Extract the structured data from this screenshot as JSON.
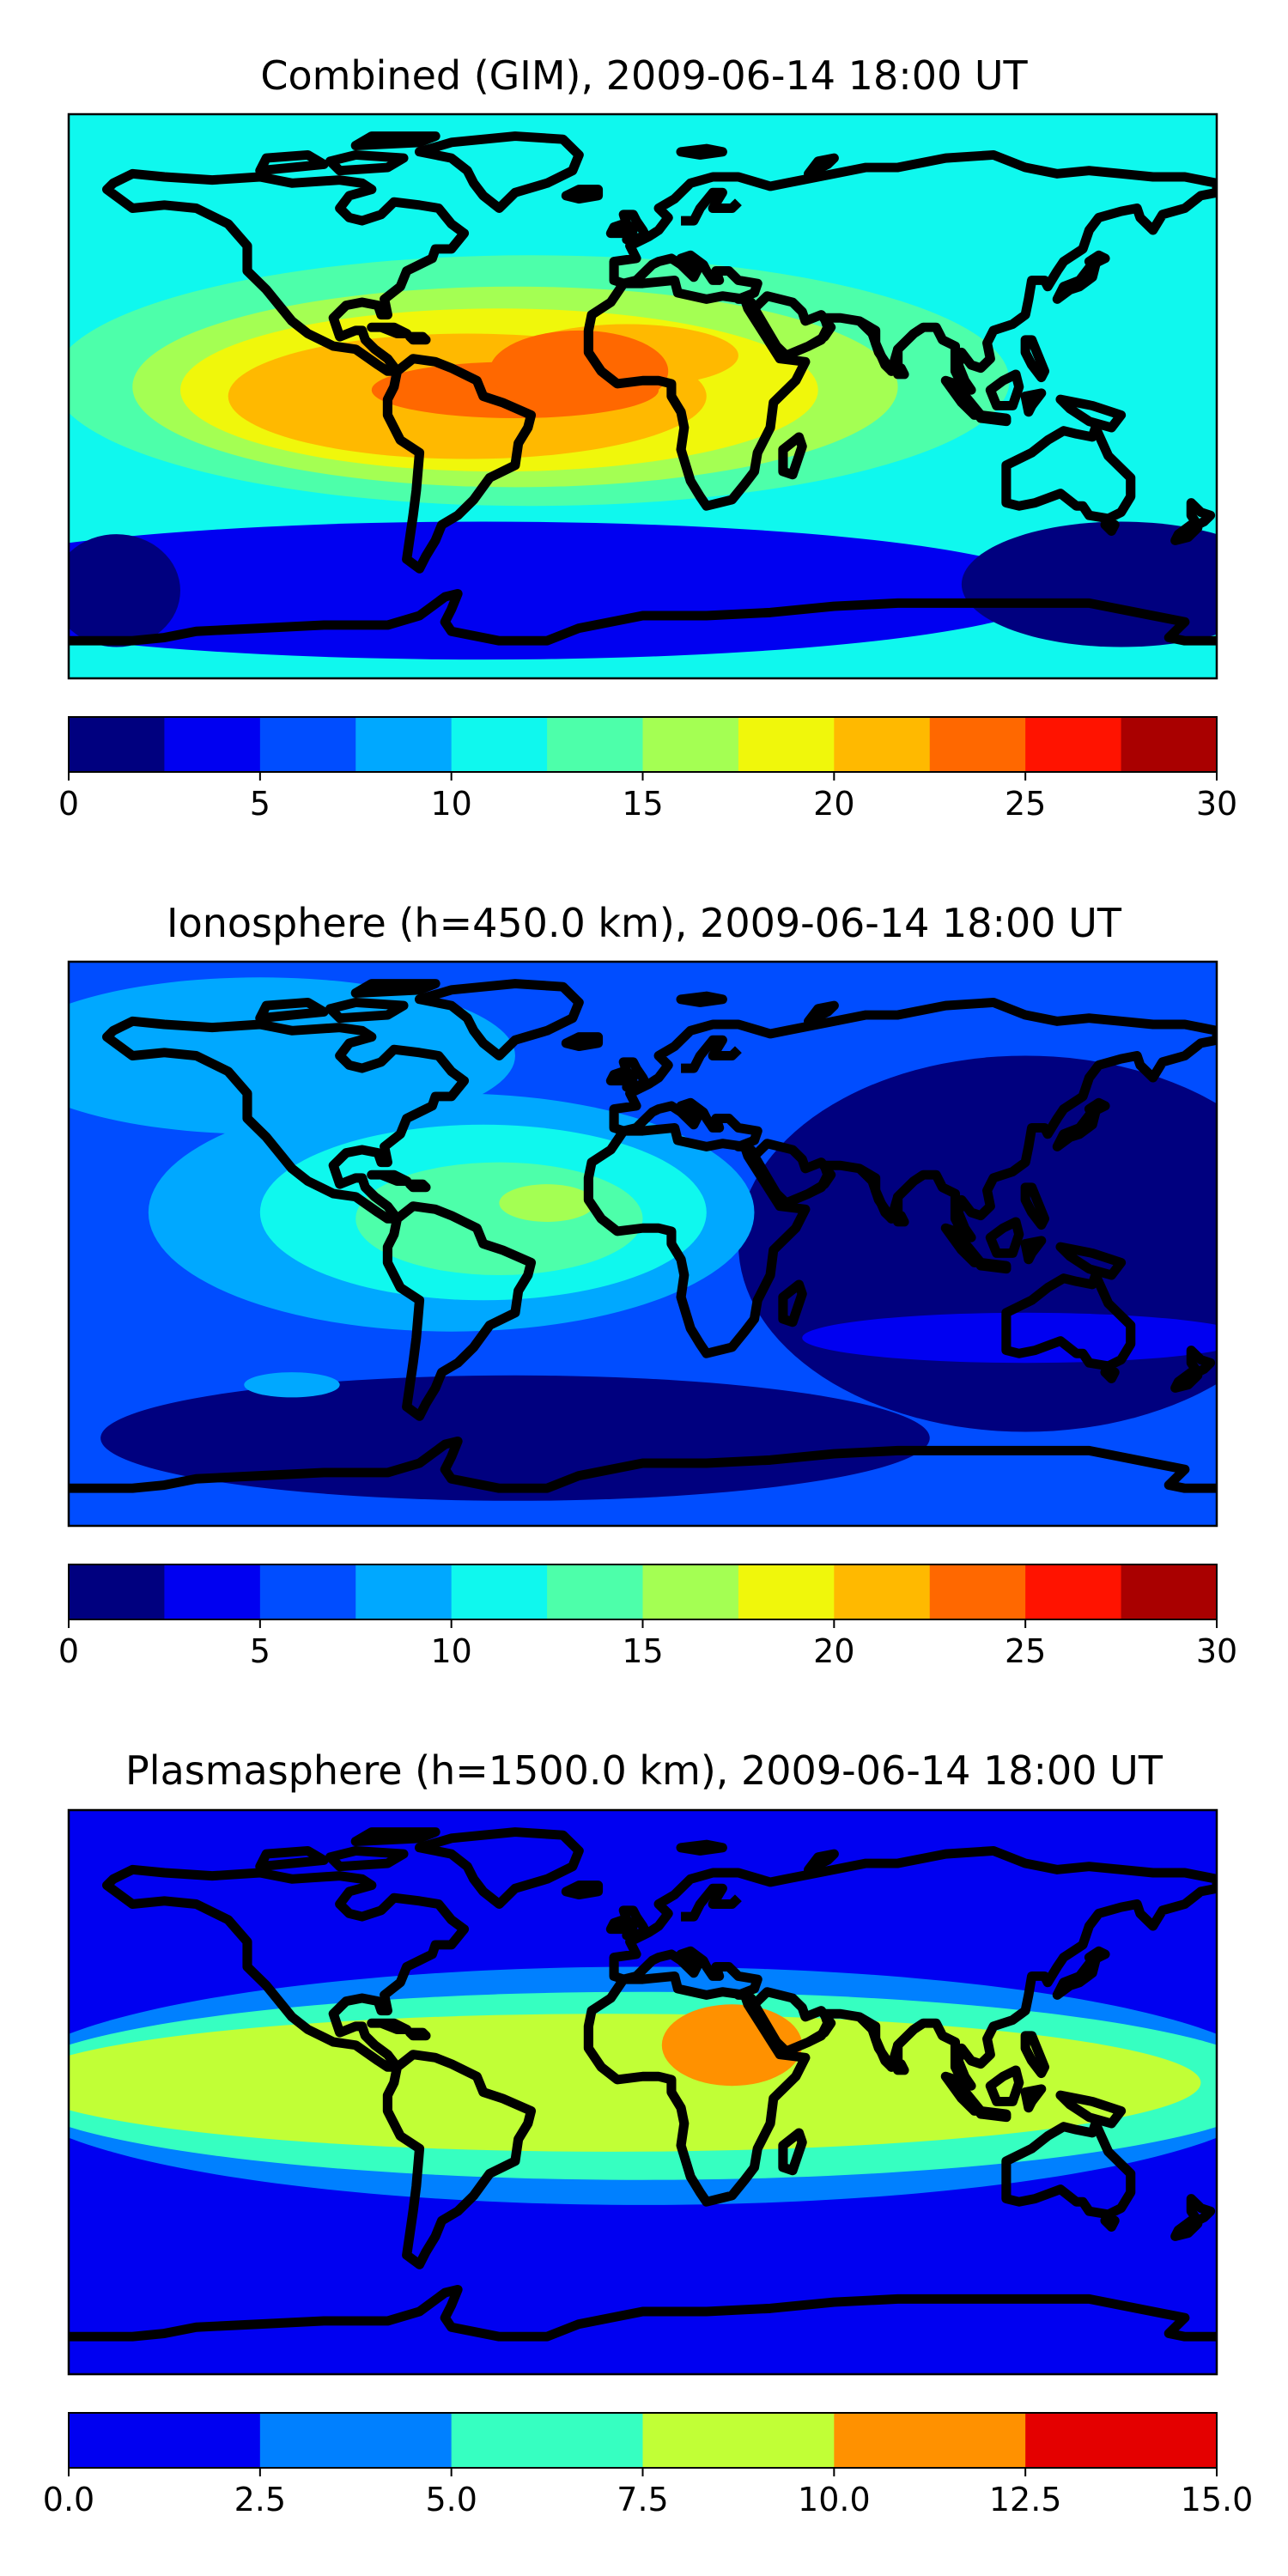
{
  "chart_data": [
    {
      "type": "heatmap",
      "title": "Combined (GIM), 2009-06-14 18:00 UT",
      "colorbar": {
        "levels": [
          0,
          2.5,
          5,
          7.5,
          10,
          12.5,
          15,
          17.5,
          20,
          22.5,
          25,
          27.5,
          30
        ],
        "colors": [
          "#00007f",
          "#0000f1",
          "#004dff",
          "#00a8ff",
          "#0ff8ee",
          "#4dffaa",
          "#a4ff53",
          "#f0f70b",
          "#ffb900",
          "#ff6800",
          "#ff1300",
          "#a90000"
        ],
        "tick_values": [
          0,
          5,
          10,
          15,
          20,
          25,
          30
        ],
        "tick_labels": [
          "0",
          "5",
          "10",
          "15",
          "20",
          "25",
          "30"
        ]
      },
      "background_level": 10,
      "features": [
        {
          "lon": -50,
          "lat": -62,
          "rx": 180,
          "ry": 22,
          "level": 2.5
        },
        {
          "lon": 150,
          "lat": -60,
          "rx": 50,
          "ry": 20,
          "level": 0
        },
        {
          "lon": -165,
          "lat": -62,
          "rx": 20,
          "ry": 18,
          "level": 0
        },
        {
          "lon": -35,
          "lat": 5,
          "rx": 150,
          "ry": 40,
          "level": 12.5
        },
        {
          "lon": -40,
          "lat": 3,
          "rx": 120,
          "ry": 32,
          "level": 15
        },
        {
          "lon": -45,
          "lat": 2,
          "rx": 100,
          "ry": 26,
          "level": 17.5
        },
        {
          "lon": -55,
          "lat": 0,
          "rx": 75,
          "ry": 20,
          "level": 20
        },
        {
          "lon": -5,
          "lat": 13,
          "rx": 35,
          "ry": 10,
          "level": 20
        },
        {
          "lon": -40,
          "lat": 2,
          "rx": 45,
          "ry": 9,
          "level": 22.5
        },
        {
          "lon": -20,
          "lat": 8,
          "rx": 28,
          "ry": 13,
          "level": 22.5
        }
      ]
    },
    {
      "type": "heatmap",
      "title": "Ionosphere  (h=450.0 km), 2009-06-14 18:00 UT",
      "colorbar": {
        "levels": [
          0,
          2.5,
          5,
          7.5,
          10,
          12.5,
          15,
          17.5,
          20,
          22.5,
          25,
          27.5,
          30
        ],
        "colors": [
          "#00007f",
          "#0000f1",
          "#004dff",
          "#00a8ff",
          "#0ff8ee",
          "#4dffaa",
          "#a4ff53",
          "#f0f70b",
          "#ffb900",
          "#ff6800",
          "#ff1300",
          "#a90000"
        ],
        "tick_values": [
          0,
          5,
          10,
          15,
          20,
          25,
          30
        ],
        "tick_labels": [
          "0",
          "5",
          "10",
          "15",
          "20",
          "25",
          "30"
        ]
      },
      "background_level": 5,
      "features": [
        {
          "lon": -120,
          "lat": 60,
          "rx": 80,
          "ry": 25,
          "level": 7.5
        },
        {
          "lon": 120,
          "lat": 0,
          "rx": 90,
          "ry": 60,
          "level": 0
        },
        {
          "lon": 120,
          "lat": -30,
          "rx": 70,
          "ry": 8,
          "level": 2.5
        },
        {
          "lon": -40,
          "lat": -62,
          "rx": 130,
          "ry": 20,
          "level": 0
        },
        {
          "lon": -60,
          "lat": 10,
          "rx": 95,
          "ry": 38,
          "level": 7.5
        },
        {
          "lon": -50,
          "lat": 10,
          "rx": 70,
          "ry": 28,
          "level": 10
        },
        {
          "lon": -45,
          "lat": 8,
          "rx": 45,
          "ry": 18,
          "level": 12.5
        },
        {
          "lon": -30,
          "lat": 13,
          "rx": 15,
          "ry": 6,
          "level": 15
        },
        {
          "lon": -110,
          "lat": -45,
          "rx": 15,
          "ry": 4,
          "level": 7.5
        }
      ]
    },
    {
      "type": "heatmap",
      "title": "Plasmasphere (h=1500.0 km), 2009-06-14 18:00 UT",
      "colorbar": {
        "levels": [
          0,
          2.5,
          5,
          7.5,
          10,
          12.5,
          15
        ],
        "colors": [
          "#0000f1",
          "#0080ff",
          "#36ffc1",
          "#c1ff36",
          "#ff9100",
          "#e40000"
        ],
        "tick_values": [
          0,
          2.5,
          5,
          7.5,
          10,
          12.5,
          15
        ],
        "tick_labels": [
          "0.0",
          "2.5",
          "5.0",
          "7.5",
          "10.0",
          "12.5",
          "15.0"
        ]
      },
      "background_level": 0,
      "features": [
        {
          "lon": 0,
          "lat": 2,
          "rx": 200,
          "ry": 38,
          "level": 2.5
        },
        {
          "lon": 0,
          "lat": 2,
          "rx": 200,
          "ry": 30,
          "level": 5
        },
        {
          "lon": -10,
          "lat": 3,
          "rx": 185,
          "ry": 22,
          "level": 7.5
        },
        {
          "lon": 28,
          "lat": 15,
          "rx": 22,
          "ry": 13,
          "level": 10
        }
      ]
    }
  ]
}
